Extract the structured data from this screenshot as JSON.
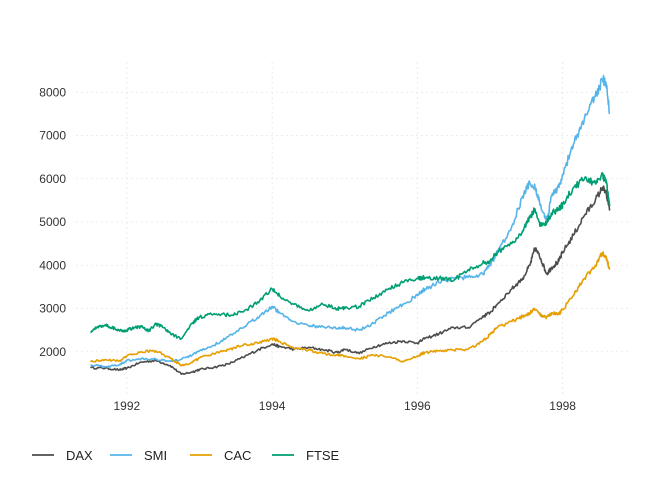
{
  "chart_data": {
    "type": "line",
    "title": "",
    "xlabel": "",
    "ylabel": "",
    "xlim": [
      1991.3,
      1998.9
    ],
    "ylim": [
      1000,
      8700
    ],
    "grid": true,
    "legend_position": "bottom-left",
    "x_ticks": [
      1992,
      1994,
      1996,
      1998
    ],
    "x_tick_labels": [
      "1992",
      "1994",
      "1996",
      "1998"
    ],
    "y_ticks": [
      2000,
      3000,
      4000,
      5000,
      6000,
      7000,
      8000
    ],
    "y_tick_labels": [
      "2000",
      "3000",
      "4000",
      "5000",
      "6000",
      "7000",
      "8000"
    ],
    "series": [
      {
        "name": "DAX",
        "color": "#4d4d4d",
        "points": [
          [
            1991.5,
            1630
          ],
          [
            1991.7,
            1620
          ],
          [
            1991.9,
            1580
          ],
          [
            1992.0,
            1620
          ],
          [
            1992.2,
            1760
          ],
          [
            1992.4,
            1800
          ],
          [
            1992.6,
            1680
          ],
          [
            1992.75,
            1480
          ],
          [
            1992.9,
            1530
          ],
          [
            1993.0,
            1590
          ],
          [
            1993.2,
            1640
          ],
          [
            1993.4,
            1720
          ],
          [
            1993.6,
            1870
          ],
          [
            1993.8,
            2040
          ],
          [
            1994.0,
            2180
          ],
          [
            1994.1,
            2120
          ],
          [
            1994.3,
            2060
          ],
          [
            1994.5,
            2100
          ],
          [
            1994.7,
            2050
          ],
          [
            1994.9,
            1980
          ],
          [
            1995.0,
            2060
          ],
          [
            1995.2,
            1960
          ],
          [
            1995.4,
            2120
          ],
          [
            1995.6,
            2200
          ],
          [
            1995.8,
            2250
          ],
          [
            1996.0,
            2200
          ],
          [
            1996.1,
            2300
          ],
          [
            1996.3,
            2420
          ],
          [
            1996.5,
            2560
          ],
          [
            1996.7,
            2560
          ],
          [
            1996.9,
            2820
          ],
          [
            1997.0,
            2900
          ],
          [
            1997.1,
            3100
          ],
          [
            1997.3,
            3450
          ],
          [
            1997.45,
            3700
          ],
          [
            1997.55,
            4000
          ],
          [
            1997.62,
            4400
          ],
          [
            1997.7,
            4150
          ],
          [
            1997.78,
            3800
          ],
          [
            1997.85,
            3950
          ],
          [
            1997.95,
            4100
          ],
          [
            1998.0,
            4300
          ],
          [
            1998.15,
            4700
          ],
          [
            1998.3,
            5150
          ],
          [
            1998.45,
            5500
          ],
          [
            1998.55,
            5800
          ],
          [
            1998.6,
            5650
          ],
          [
            1998.65,
            5300
          ]
        ]
      },
      {
        "name": "SMI",
        "color": "#56b4e9",
        "points": [
          [
            1991.5,
            1700
          ],
          [
            1991.7,
            1650
          ],
          [
            1991.9,
            1700
          ],
          [
            1992.0,
            1800
          ],
          [
            1992.2,
            1840
          ],
          [
            1992.4,
            1830
          ],
          [
            1992.6,
            1780
          ],
          [
            1992.75,
            1820
          ],
          [
            1992.9,
            1920
          ],
          [
            1993.0,
            2020
          ],
          [
            1993.2,
            2150
          ],
          [
            1993.4,
            2350
          ],
          [
            1993.6,
            2550
          ],
          [
            1993.8,
            2800
          ],
          [
            1994.0,
            3050
          ],
          [
            1994.1,
            2900
          ],
          [
            1994.3,
            2700
          ],
          [
            1994.5,
            2600
          ],
          [
            1994.7,
            2580
          ],
          [
            1994.9,
            2540
          ],
          [
            1995.0,
            2560
          ],
          [
            1995.2,
            2500
          ],
          [
            1995.4,
            2660
          ],
          [
            1995.6,
            2900
          ],
          [
            1995.8,
            3100
          ],
          [
            1996.0,
            3300
          ],
          [
            1996.1,
            3450
          ],
          [
            1996.3,
            3600
          ],
          [
            1996.5,
            3700
          ],
          [
            1996.7,
            3720
          ],
          [
            1996.9,
            3800
          ],
          [
            1997.0,
            4000
          ],
          [
            1997.1,
            4300
          ],
          [
            1997.3,
            4900
          ],
          [
            1997.45,
            5600
          ],
          [
            1997.55,
            5900
          ],
          [
            1997.62,
            5800
          ],
          [
            1997.7,
            5400
          ],
          [
            1997.78,
            5000
          ],
          [
            1997.85,
            5600
          ],
          [
            1997.95,
            5800
          ],
          [
            1998.0,
            6100
          ],
          [
            1998.15,
            6800
          ],
          [
            1998.3,
            7400
          ],
          [
            1998.45,
            7900
          ],
          [
            1998.55,
            8300
          ],
          [
            1998.6,
            8200
          ],
          [
            1998.65,
            7500
          ]
        ]
      },
      {
        "name": "CAC",
        "color": "#e69f00",
        "points": [
          [
            1991.5,
            1770
          ],
          [
            1991.7,
            1820
          ],
          [
            1991.9,
            1790
          ],
          [
            1992.0,
            1900
          ],
          [
            1992.2,
            2000
          ],
          [
            1992.4,
            2020
          ],
          [
            1992.6,
            1850
          ],
          [
            1992.75,
            1680
          ],
          [
            1992.9,
            1750
          ],
          [
            1993.0,
            1860
          ],
          [
            1993.2,
            1950
          ],
          [
            1993.4,
            2050
          ],
          [
            1993.6,
            2150
          ],
          [
            1993.8,
            2200
          ],
          [
            1994.0,
            2300
          ],
          [
            1994.1,
            2240
          ],
          [
            1994.3,
            2080
          ],
          [
            1994.5,
            2040
          ],
          [
            1994.7,
            1960
          ],
          [
            1994.9,
            1920
          ],
          [
            1995.0,
            1900
          ],
          [
            1995.2,
            1840
          ],
          [
            1995.4,
            1920
          ],
          [
            1995.6,
            1880
          ],
          [
            1995.8,
            1780
          ],
          [
            1996.0,
            1900
          ],
          [
            1996.1,
            1980
          ],
          [
            1996.3,
            2020
          ],
          [
            1996.5,
            2040
          ],
          [
            1996.7,
            2060
          ],
          [
            1996.9,
            2240
          ],
          [
            1997.0,
            2400
          ],
          [
            1997.1,
            2560
          ],
          [
            1997.3,
            2700
          ],
          [
            1997.45,
            2820
          ],
          [
            1997.55,
            2900
          ],
          [
            1997.62,
            2980
          ],
          [
            1997.7,
            2850
          ],
          [
            1997.78,
            2800
          ],
          [
            1997.85,
            2900
          ],
          [
            1997.95,
            2860
          ],
          [
            1998.0,
            2980
          ],
          [
            1998.15,
            3300
          ],
          [
            1998.3,
            3700
          ],
          [
            1998.45,
            4000
          ],
          [
            1998.55,
            4300
          ],
          [
            1998.6,
            4200
          ],
          [
            1998.65,
            3900
          ]
        ]
      },
      {
        "name": "FTSE",
        "color": "#009e73",
        "points": [
          [
            1991.5,
            2450
          ],
          [
            1991.6,
            2580
          ],
          [
            1991.7,
            2620
          ],
          [
            1991.8,
            2560
          ],
          [
            1991.9,
            2480
          ],
          [
            1992.0,
            2500
          ],
          [
            1992.1,
            2560
          ],
          [
            1992.2,
            2580
          ],
          [
            1992.3,
            2480
          ],
          [
            1992.4,
            2640
          ],
          [
            1992.5,
            2560
          ],
          [
            1992.6,
            2420
          ],
          [
            1992.75,
            2300
          ],
          [
            1992.9,
            2660
          ],
          [
            1993.0,
            2800
          ],
          [
            1993.2,
            2880
          ],
          [
            1993.4,
            2850
          ],
          [
            1993.6,
            2920
          ],
          [
            1993.8,
            3150
          ],
          [
            1994.0,
            3450
          ],
          [
            1994.1,
            3300
          ],
          [
            1994.3,
            3100
          ],
          [
            1994.5,
            2950
          ],
          [
            1994.7,
            3100
          ],
          [
            1994.9,
            3000
          ],
          [
            1995.0,
            3000
          ],
          [
            1995.2,
            3050
          ],
          [
            1995.4,
            3250
          ],
          [
            1995.6,
            3450
          ],
          [
            1995.8,
            3600
          ],
          [
            1996.0,
            3700
          ],
          [
            1996.1,
            3720
          ],
          [
            1996.3,
            3700
          ],
          [
            1996.5,
            3650
          ],
          [
            1996.7,
            3900
          ],
          [
            1996.9,
            4050
          ],
          [
            1997.0,
            4100
          ],
          [
            1997.1,
            4300
          ],
          [
            1997.3,
            4500
          ],
          [
            1997.45,
            4800
          ],
          [
            1997.55,
            5100
          ],
          [
            1997.62,
            5300
          ],
          [
            1997.7,
            4900
          ],
          [
            1997.78,
            5000
          ],
          [
            1997.85,
            5200
          ],
          [
            1997.95,
            5300
          ],
          [
            1998.0,
            5400
          ],
          [
            1998.15,
            5800
          ],
          [
            1998.3,
            6000
          ],
          [
            1998.45,
            5900
          ],
          [
            1998.55,
            6100
          ],
          [
            1998.6,
            5900
          ],
          [
            1998.65,
            5400
          ]
        ]
      }
    ]
  }
}
